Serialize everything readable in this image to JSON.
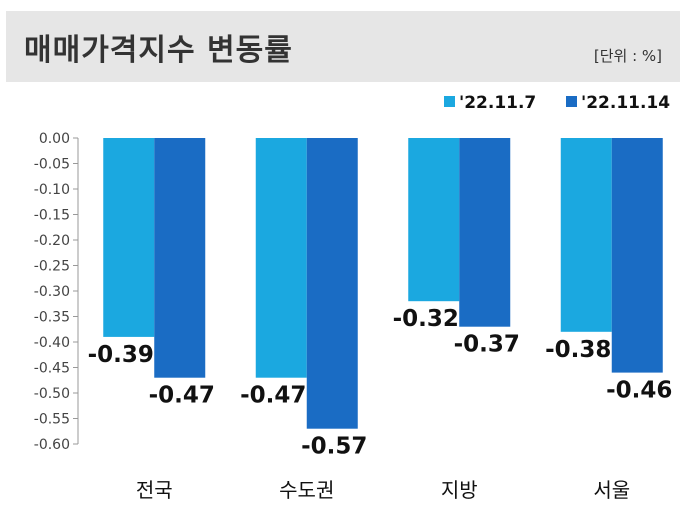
{
  "header": {
    "title": "매매가격지수 변동률",
    "unit": "[단위 : %]"
  },
  "colors": {
    "series1": "#1ba8e0",
    "series2": "#1a6cc4",
    "header_bg": "#e6e6e6",
    "axis": "#999999"
  },
  "chart_data": {
    "type": "bar",
    "title": "매매가격지수 변동률",
    "categories": [
      "전국",
      "수도권",
      "지방",
      "서울"
    ],
    "series": [
      {
        "name": "'22.11.7",
        "values": [
          -0.39,
          -0.47,
          -0.32,
          -0.38
        ],
        "labels": [
          "-0.39",
          "-0.47",
          "-0.32",
          "-0.38"
        ]
      },
      {
        "name": "'22.11.14",
        "values": [
          -0.47,
          -0.57,
          -0.37,
          -0.46
        ],
        "labels": [
          "-0.47",
          "-0.57",
          "-0.37",
          "-0.46"
        ]
      }
    ],
    "yticks": [
      "0.00",
      "-0.05",
      "-0.10",
      "-0.15",
      "-0.20",
      "-0.25",
      "-0.30",
      "-0.35",
      "-0.40",
      "-0.45",
      "-0.50",
      "-0.55",
      "-0.60"
    ],
    "ylim": [
      -0.6,
      0.0
    ],
    "xlabel": "",
    "ylabel": "",
    "legend_position": "top-right"
  }
}
